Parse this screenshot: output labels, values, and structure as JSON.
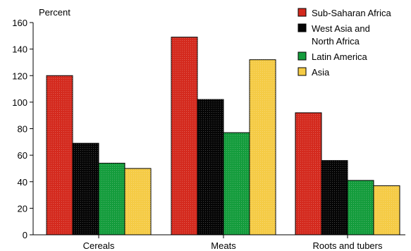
{
  "chart_data": {
    "type": "bar",
    "ylabel": "Percent",
    "ylim": [
      0,
      160
    ],
    "yticks": [
      0,
      20,
      40,
      60,
      80,
      100,
      120,
      140,
      160
    ],
    "categories": [
      "Cereals",
      "Meats",
      "Roots and tubers"
    ],
    "legend_position": "top-right",
    "series": [
      {
        "name": "Sub-Saharan Africa",
        "legend_lines": [
          "Sub-Saharan Africa"
        ],
        "color": "#d42a1e",
        "values": [
          120,
          149,
          92
        ]
      },
      {
        "name": "West Asia and North Africa",
        "legend_lines": [
          "West Asia and",
          "North Africa"
        ],
        "color": "#050505",
        "values": [
          69,
          102,
          56
        ]
      },
      {
        "name": "Latin America",
        "legend_lines": [
          "Latin America"
        ],
        "color": "#149c3c",
        "values": [
          54,
          77,
          41
        ]
      },
      {
        "name": "Asia",
        "legend_lines": [
          "Asia"
        ],
        "color": "#f5cb45",
        "values": [
          50,
          132,
          37
        ]
      }
    ]
  }
}
